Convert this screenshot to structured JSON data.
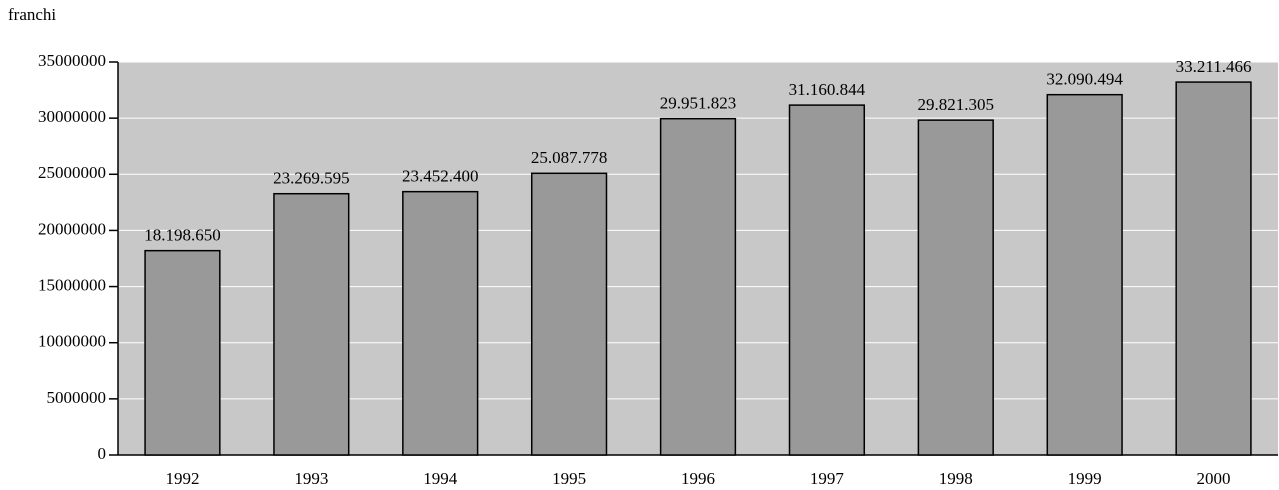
{
  "chart_data": {
    "type": "bar",
    "y_label": "franchi",
    "categories": [
      "1992",
      "1993",
      "1994",
      "1995",
      "1996",
      "1997",
      "1998",
      "1999",
      "2000"
    ],
    "values": [
      18198650,
      23269595,
      23452400,
      25087778,
      29951823,
      31160844,
      29821305,
      32090494,
      33211466
    ],
    "value_labels": [
      "18.198.650",
      "23.269.595",
      "23.452.400",
      "25.087.778",
      "29.951.823",
      "31.160.844",
      "29.821.305",
      "32.090.494",
      "33.211.466"
    ],
    "color": "#999999",
    "plot_background": "#c8c8c8",
    "ylim": [
      0,
      35000000
    ],
    "yticks": [
      0,
      5000000,
      10000000,
      15000000,
      20000000,
      25000000,
      30000000,
      35000000
    ],
    "grid": true
  }
}
